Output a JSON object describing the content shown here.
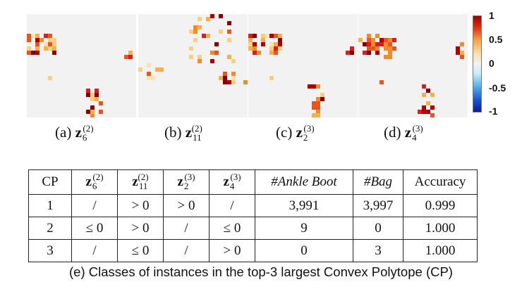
{
  "figure": {
    "panels": [
      {
        "id": "a",
        "label": "(a)",
        "var": "z",
        "sub": "6",
        "sup": "(2)"
      },
      {
        "id": "b",
        "label": "(b)",
        "var": "z",
        "sub": "11",
        "sup": "(2)"
      },
      {
        "id": "c",
        "label": "(c)",
        "var": "z",
        "sub": "2",
        "sup": "(3)"
      },
      {
        "id": "d",
        "label": "(d)",
        "var": "z",
        "sub": "4",
        "sup": "(3)"
      }
    ],
    "colorbar": {
      "ticks": [
        "1",
        "0.5",
        "0",
        "-0.5",
        "-1"
      ],
      "colors": {
        "high": "#a00000",
        "mid_high": "#f5a24a",
        "zero": "#f2f2f2",
        "mid_low": "#4aa8e8",
        "low": "#0a1a9a"
      }
    }
  },
  "table": {
    "headers": {
      "cp": "CP",
      "z1": {
        "var": "z",
        "sub": "6",
        "sup": "(2)"
      },
      "z2": {
        "var": "z",
        "sub": "11",
        "sup": "(2)"
      },
      "z3": {
        "var": "z",
        "sub": "2",
        "sup": "(3)"
      },
      "z4": {
        "var": "z",
        "sub": "4",
        "sup": "(3)"
      },
      "ankle": "#Ankle Boot",
      "bag": "#Bag",
      "acc": "Accuracy"
    },
    "rows": [
      {
        "cp": "1",
        "z1": "/",
        "z2": "> 0",
        "z3": "> 0",
        "z4": "/",
        "ankle": "3,991",
        "bag": "3,997",
        "acc": "0.999"
      },
      {
        "cp": "2",
        "z1": "≤ 0",
        "z2": "> 0",
        "z3": "/",
        "z4": "≤ 0",
        "ankle": "9",
        "bag": "0",
        "acc": "1.000"
      },
      {
        "cp": "3",
        "z1": "/",
        "z2": "≤ 0",
        "z3": "/",
        "z4": "> 0",
        "ankle": "0",
        "bag": "3",
        "acc": "1.000"
      }
    ]
  },
  "caption": "(e) Classes of instances in the top-3 largest Convex Polytope (CP)"
}
